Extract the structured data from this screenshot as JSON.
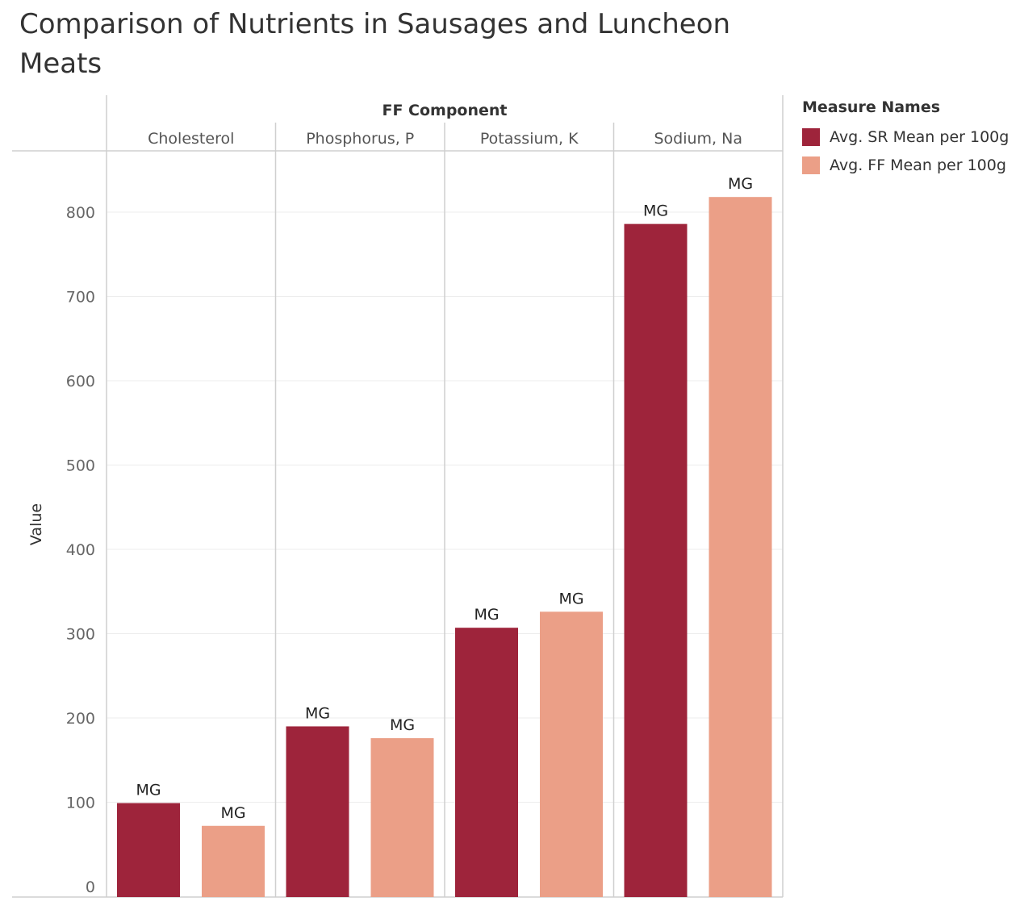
{
  "title": "Comparison of Nutrients in Sausages and Luncheon Meats",
  "legend": {
    "title": "Measure Names",
    "items": [
      {
        "label": "Avg. SR Mean per 100g",
        "color": "#9e243b"
      },
      {
        "label": "Avg. FF Mean per 100g",
        "color": "#eb9f87"
      }
    ]
  },
  "chart_data": {
    "type": "bar",
    "column_header": "FF Component",
    "categories": [
      "Cholesterol",
      "Phosphorus, P",
      "Potassium, K",
      "Sodium, Na"
    ],
    "series": [
      {
        "name": "Avg. SR Mean per 100g",
        "color": "#9e243b",
        "values": [
          99,
          190,
          307,
          786
        ],
        "labels": [
          "MG",
          "MG",
          "MG",
          "MG"
        ]
      },
      {
        "name": "Avg. FF Mean per 100g",
        "color": "#eb9f87",
        "values": [
          72,
          176,
          326,
          818
        ],
        "labels": [
          "MG",
          "MG",
          "MG",
          "MG"
        ]
      }
    ],
    "ylabel": "Value",
    "yticks": [
      0,
      100,
      200,
      300,
      400,
      500,
      600,
      700,
      800
    ],
    "ylim": [
      0,
      870
    ],
    "grid": true,
    "legend_position": "right"
  }
}
